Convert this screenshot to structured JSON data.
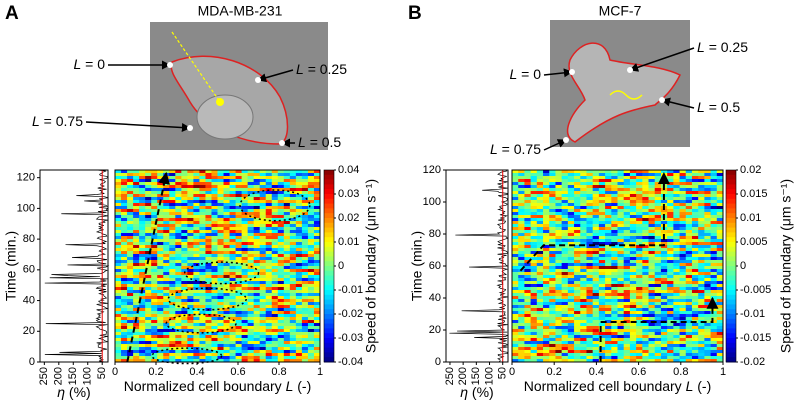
{
  "panels": [
    {
      "label": "A",
      "title": "MDA-MB-231",
      "markers": [
        {
          "symbol": "L",
          "text": "= 0"
        },
        {
          "symbol": "L",
          "text": "= 0.25"
        },
        {
          "symbol": "L",
          "text": "= 0.75"
        },
        {
          "symbol": "L",
          "text": "= 0.5"
        }
      ],
      "time_title": "Time (min.)",
      "time_lim": [
        0,
        125
      ],
      "time_ticks": [
        0,
        20,
        40,
        60,
        80,
        100,
        120
      ],
      "eta_title": [
        "η",
        " (%)"
      ],
      "eta_lim": [
        265,
        30
      ],
      "eta_ticks": [
        250,
        200,
        150,
        100,
        50
      ],
      "x_title": [
        "Normalized cell boundary ",
        "L",
        " (-)"
      ],
      "x_lim": [
        0,
        1
      ],
      "x_ticks": [
        0,
        0.2,
        0.4,
        0.6,
        0.8,
        1
      ],
      "colorbar_title": "Speed of boundary (μm s⁻¹)",
      "colorbar_lim": [
        -0.04,
        0.04
      ],
      "colorbar_ticks": [
        0.04,
        0.03,
        0.02,
        0.01,
        0,
        -0.01,
        -0.02,
        -0.03,
        -0.04
      ]
    },
    {
      "label": "B",
      "title": "MCF-7",
      "markers": [
        {
          "symbol": "L",
          "text": "= 0"
        },
        {
          "symbol": "L",
          "text": "= 0.25"
        },
        {
          "symbol": "L",
          "text": "= 0.5"
        },
        {
          "symbol": "L",
          "text": "= 0.75"
        }
      ],
      "time_title": "Time (min.)",
      "time_lim": [
        0,
        120
      ],
      "time_ticks": [
        0,
        20,
        40,
        60,
        80,
        100,
        120
      ],
      "eta_title": [
        "η",
        " (%)"
      ],
      "eta_lim": [
        265,
        30
      ],
      "eta_ticks": [
        250,
        200,
        150,
        100,
        50
      ],
      "x_title": [
        "Normalized cell boundary ",
        "L",
        " (-)"
      ],
      "x_lim": [
        0,
        1
      ],
      "x_ticks": [
        0,
        0.2,
        0.4,
        0.6,
        0.8,
        1
      ],
      "colorbar_title": "Speed of boundary (μm s⁻¹)",
      "colorbar_lim": [
        -0.02,
        0.02
      ],
      "colorbar_ticks": [
        0.02,
        0.015,
        0.01,
        0.005,
        0,
        -0.005,
        -0.01,
        -0.015,
        -0.02
      ]
    }
  ]
}
